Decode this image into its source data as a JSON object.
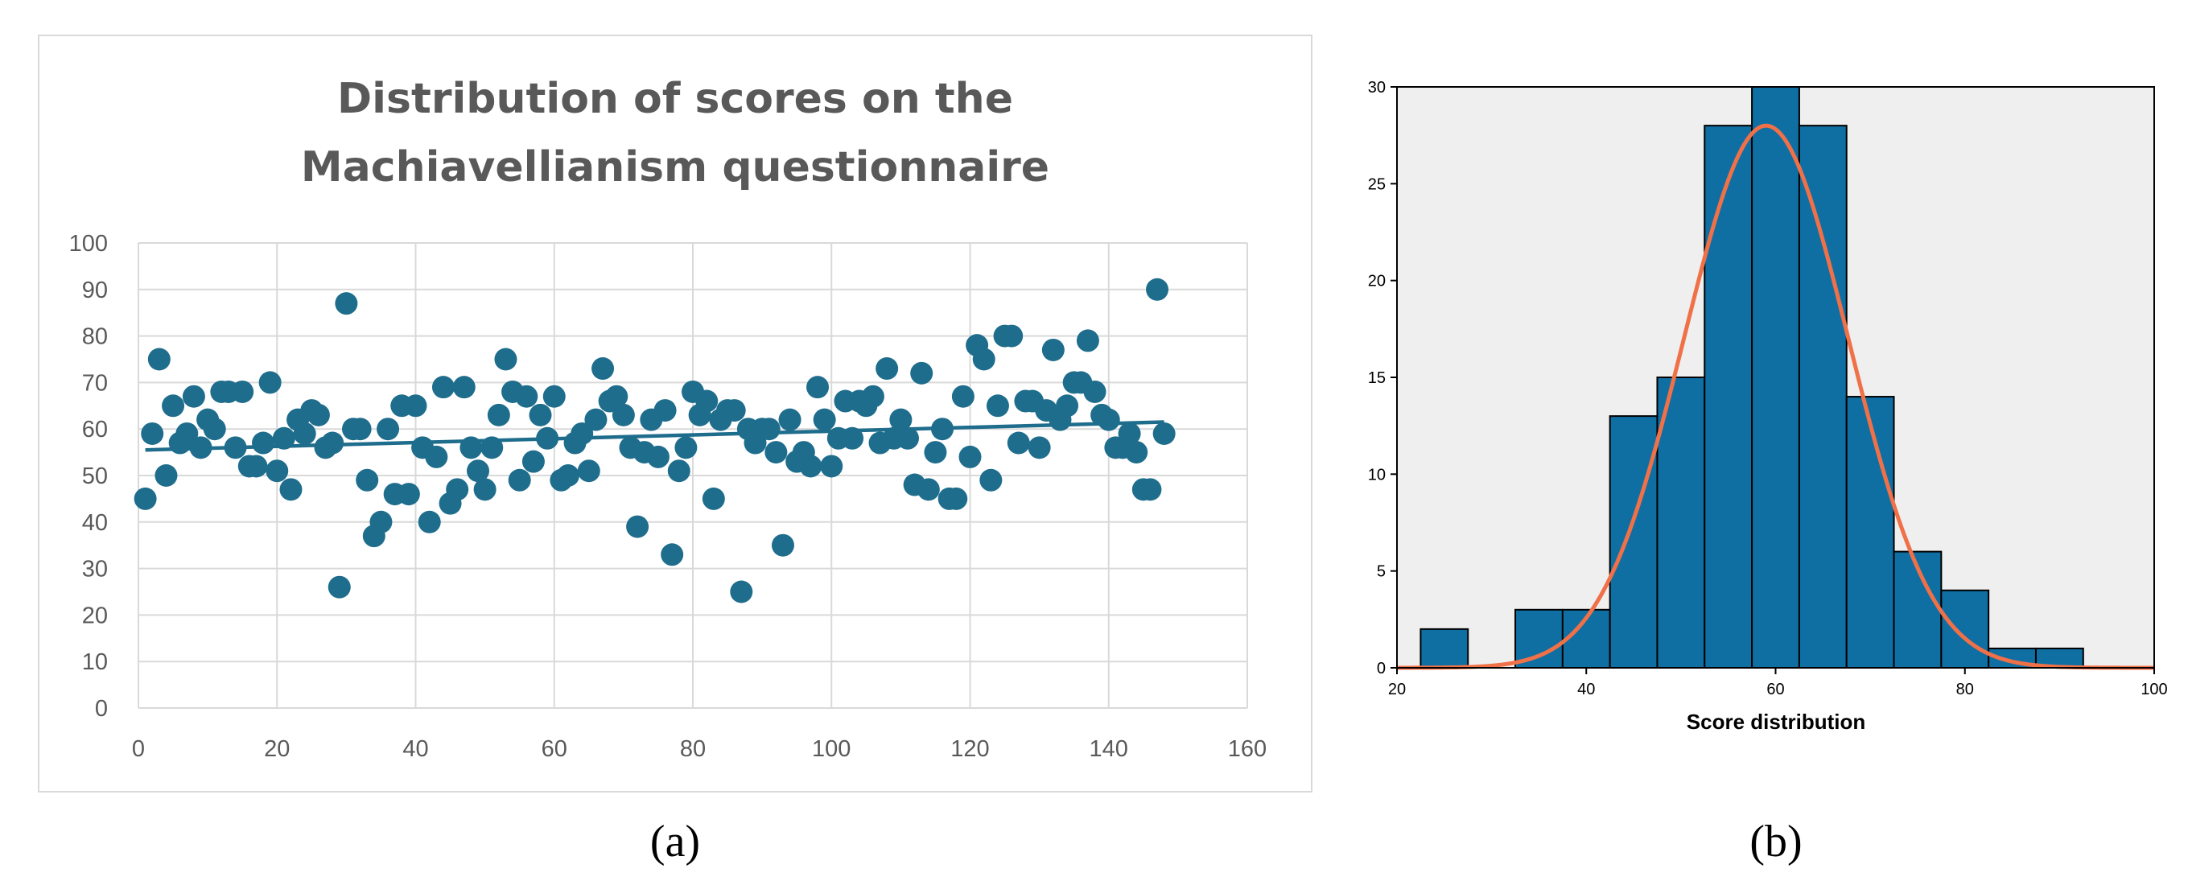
{
  "chart_data": [
    {
      "panel_label": "(a)",
      "type": "scatter",
      "title_lines": [
        "Distribution of scores on the",
        "Machiavellianism questionnaire"
      ],
      "xlabel": "",
      "ylabel": "",
      "xlim": [
        0,
        160
      ],
      "ylim": [
        0,
        100
      ],
      "x_ticks": [
        "0",
        "20",
        "40",
        "60",
        "80",
        "100",
        "120",
        "140",
        "160"
      ],
      "y_ticks": [
        "0",
        "10",
        "20",
        "30",
        "40",
        "50",
        "60",
        "70",
        "80",
        "90",
        "100"
      ],
      "grid": true,
      "trendline": {
        "type": "linear",
        "x": [
          1,
          148
        ],
        "y": [
          55.5,
          61.5
        ]
      },
      "colors": {
        "points": "#1f6d8c",
        "trendline": "#1f6d8c",
        "grid": "#d9d9d9",
        "frame": "#d9d9d9"
      },
      "x": [
        1,
        2,
        3,
        4,
        5,
        6,
        7,
        8,
        9,
        10,
        11,
        12,
        13,
        14,
        15,
        16,
        17,
        18,
        19,
        20,
        21,
        22,
        23,
        24,
        25,
        26,
        27,
        28,
        29,
        30,
        31,
        32,
        33,
        34,
        35,
        36,
        37,
        38,
        39,
        40,
        41,
        42,
        43,
        44,
        45,
        46,
        47,
        48,
        49,
        50,
        51,
        52,
        53,
        54,
        55,
        56,
        57,
        58,
        59,
        60,
        61,
        62,
        63,
        64,
        65,
        66,
        67,
        68,
        69,
        70,
        71,
        72,
        73,
        74,
        75,
        76,
        77,
        78,
        79,
        80,
        81,
        82,
        83,
        84,
        85,
        86,
        87,
        88,
        89,
        90,
        91,
        92,
        93,
        94,
        95,
        96,
        97,
        98,
        99,
        100,
        101,
        102,
        103,
        104,
        105,
        106,
        107,
        108,
        109,
        110,
        111,
        112,
        113,
        114,
        115,
        116,
        117,
        118,
        119,
        120,
        121,
        122,
        123,
        124,
        125,
        126,
        127,
        128,
        129,
        130,
        131,
        132,
        133,
        134,
        135,
        136,
        137,
        138,
        139,
        140,
        141,
        142,
        143,
        144,
        145,
        146,
        147,
        148
      ],
      "y": [
        45,
        59,
        75,
        50,
        65,
        57,
        59,
        67,
        56,
        62,
        60,
        68,
        68,
        56,
        68,
        52,
        52,
        57,
        70,
        51,
        58,
        47,
        62,
        59,
        64,
        63,
        56,
        57,
        26,
        87,
        60,
        60,
        49,
        37,
        40,
        60,
        46,
        65,
        46,
        65,
        56,
        40,
        54,
        69,
        44,
        47,
        69,
        56,
        51,
        47,
        56,
        63,
        75,
        68,
        49,
        67,
        53,
        63,
        58,
        67,
        49,
        50,
        57,
        59,
        51,
        62,
        73,
        66,
        67,
        63,
        56,
        39,
        55,
        62,
        54,
        64,
        33,
        51,
        56,
        68,
        63,
        66,
        45,
        62,
        64,
        64,
        25,
        60,
        57,
        60,
        60,
        55,
        35,
        62,
        53,
        55,
        52,
        69,
        62,
        52,
        58,
        66,
        58,
        66,
        65,
        67,
        57,
        73,
        58,
        62,
        58,
        48,
        72,
        47,
        55,
        60,
        45,
        45,
        67,
        54,
        78,
        75,
        49,
        65,
        80,
        80,
        57,
        66,
        66,
        56,
        64,
        77,
        62,
        65,
        70,
        70,
        79,
        68,
        63,
        62,
        56,
        56,
        59,
        55,
        47,
        47,
        90,
        59
      ]
    },
    {
      "panel_label": "(b)",
      "type": "bar",
      "subtype": "histogram",
      "xlabel": "Score distribution",
      "ylabel": "",
      "xlim": [
        20,
        100
      ],
      "ylim": [
        0,
        30
      ],
      "x_ticks": [
        "20",
        "40",
        "60",
        "80",
        "100"
      ],
      "y_ticks": [
        "0",
        "5",
        "10",
        "15",
        "20",
        "25",
        "30"
      ],
      "bin_width": 5,
      "bins": [
        {
          "start": 22.5,
          "end": 27.5,
          "count": 2
        },
        {
          "start": 27.5,
          "end": 32.5,
          "count": 0
        },
        {
          "start": 32.5,
          "end": 37.5,
          "count": 3
        },
        {
          "start": 37.5,
          "end": 42.5,
          "count": 3
        },
        {
          "start": 42.5,
          "end": 47.5,
          "count": 13
        },
        {
          "start": 47.5,
          "end": 52.5,
          "count": 15
        },
        {
          "start": 52.5,
          "end": 57.5,
          "count": 28
        },
        {
          "start": 57.5,
          "end": 62.5,
          "count": 30
        },
        {
          "start": 62.5,
          "end": 67.5,
          "count": 28
        },
        {
          "start": 67.5,
          "end": 72.5,
          "count": 14
        },
        {
          "start": 72.5,
          "end": 77.5,
          "count": 6
        },
        {
          "start": 77.5,
          "end": 82.5,
          "count": 4
        },
        {
          "start": 82.5,
          "end": 87.5,
          "count": 1
        },
        {
          "start": 87.5,
          "end": 92.5,
          "count": 1
        }
      ],
      "normal_curve": {
        "mean": 59,
        "sd": 8.7,
        "peak": 28
      },
      "grid": false,
      "colors": {
        "bars": "#0f6fa3",
        "bar_edge": "#000000",
        "curve": "#f07048",
        "plot_background": "#efefef"
      }
    }
  ]
}
